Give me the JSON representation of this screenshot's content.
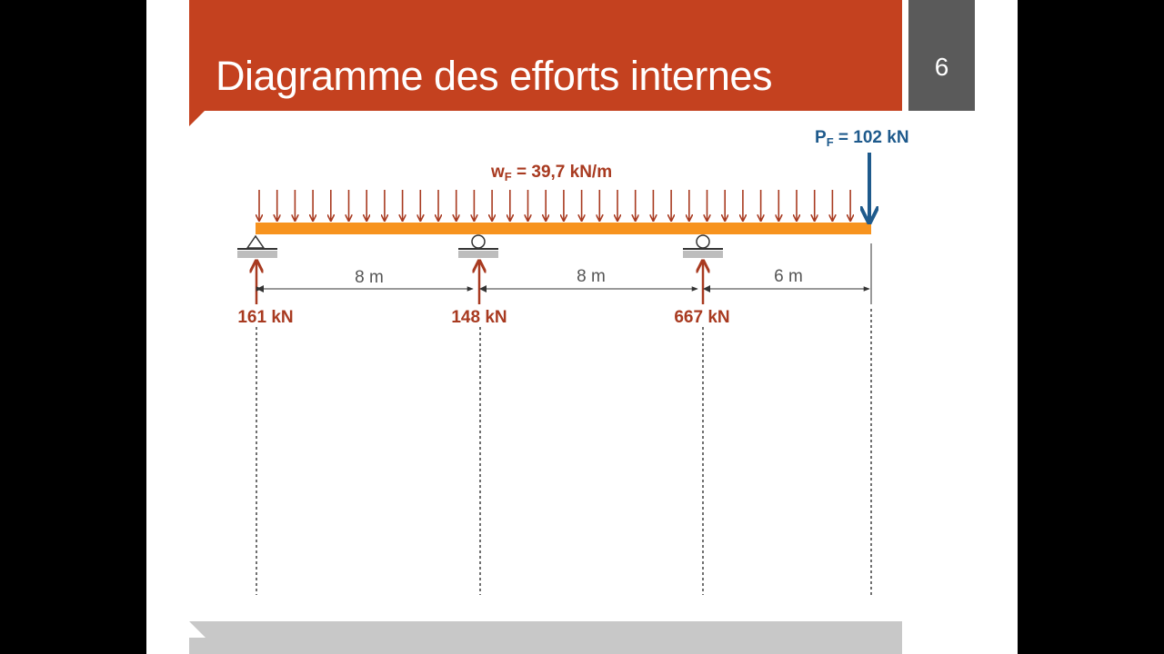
{
  "slide": {
    "title": "Diagramme des efforts internes",
    "page_number": "6"
  },
  "diagram": {
    "distributed_load": {
      "symbol": "w",
      "subscript": "F",
      "value_text": " = 39,7 kN/m"
    },
    "point_load": {
      "symbol": "P",
      "subscript": "F",
      "value_text": " = 102 kN"
    },
    "spans": [
      "8 m",
      "8 m",
      "6 m"
    ],
    "reactions": [
      "161 kN",
      "148 kN",
      "667 kN"
    ],
    "supports": [
      "pin-support",
      "roller-support",
      "roller-support"
    ]
  },
  "colors": {
    "title_bar": "#c4411f",
    "page_box": "#5a5a5a",
    "beam": "#f7931e",
    "load_arrows": "#a83a20",
    "point_load_arrow": "#1e5a8c",
    "footer": "#c8c8c8"
  }
}
